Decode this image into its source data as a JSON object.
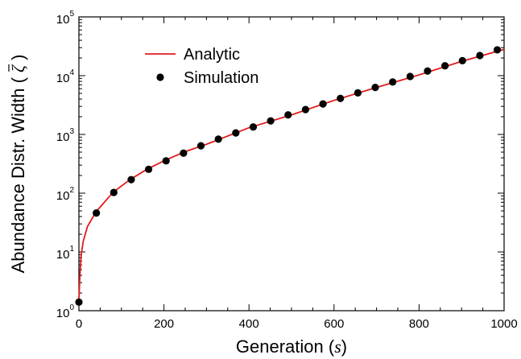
{
  "chart_data": {
    "type": "scatter",
    "xlabel": "Generation (s)",
    "xlabel_parts": {
      "prefix": "Generation (",
      "symbol": "s",
      "suffix": ")"
    },
    "ylabel": "Abundance Distr. Width ( ζ̄ )",
    "ylabel_parts": {
      "prefix": "Abundance Distr. Width (",
      "symbol": "ζ",
      "suffix": ")"
    },
    "x_scale": "linear",
    "y_scale": "log",
    "xlim": [
      0,
      1000
    ],
    "ylim": [
      1,
      100000
    ],
    "x_ticks": [
      0,
      200,
      400,
      600,
      800,
      1000
    ],
    "x_tick_labels": [
      "0",
      "200",
      "400",
      "600",
      "800",
      "1000"
    ],
    "y_ticks": [
      1,
      10,
      100,
      1000,
      10000,
      100000
    ],
    "y_tick_labels": [
      {
        "base": "10",
        "exp": "0"
      },
      {
        "base": "10",
        "exp": "1"
      },
      {
        "base": "10",
        "exp": "2"
      },
      {
        "base": "10",
        "exp": "3"
      },
      {
        "base": "10",
        "exp": "4"
      },
      {
        "base": "10",
        "exp": "5"
      }
    ],
    "grid": false,
    "legend_position": "upper-left",
    "series": [
      {
        "name": "Analytic",
        "kind": "line",
        "color": "#e41a1c",
        "x": [
          0,
          2,
          5,
          10,
          20,
          40,
          80,
          120,
          160,
          200,
          250,
          300,
          400,
          500,
          600,
          700,
          800,
          900,
          1000
        ],
        "y": [
          1.4,
          3.5,
          8.5,
          15,
          27,
          48,
          103,
          170,
          255,
          355,
          510,
          680,
          1300,
          2150,
          3800,
          6300,
          10300,
          17500,
          28000
        ]
      },
      {
        "name": "Simulation",
        "kind": "markers",
        "color": "#000000",
        "x": [
          0,
          41,
          82,
          123,
          164,
          205,
          246,
          287,
          328,
          369,
          410,
          451,
          492,
          533,
          574,
          615,
          656,
          697,
          738,
          779,
          820,
          861,
          902,
          943,
          984
        ],
        "y": [
          1.4,
          46,
          103,
          170,
          255,
          355,
          480,
          640,
          830,
          1060,
          1340,
          1700,
          2150,
          2650,
          3300,
          4100,
          5100,
          6300,
          7800,
          9700,
          12000,
          14700,
          18000,
          22000,
          27500
        ]
      }
    ]
  }
}
